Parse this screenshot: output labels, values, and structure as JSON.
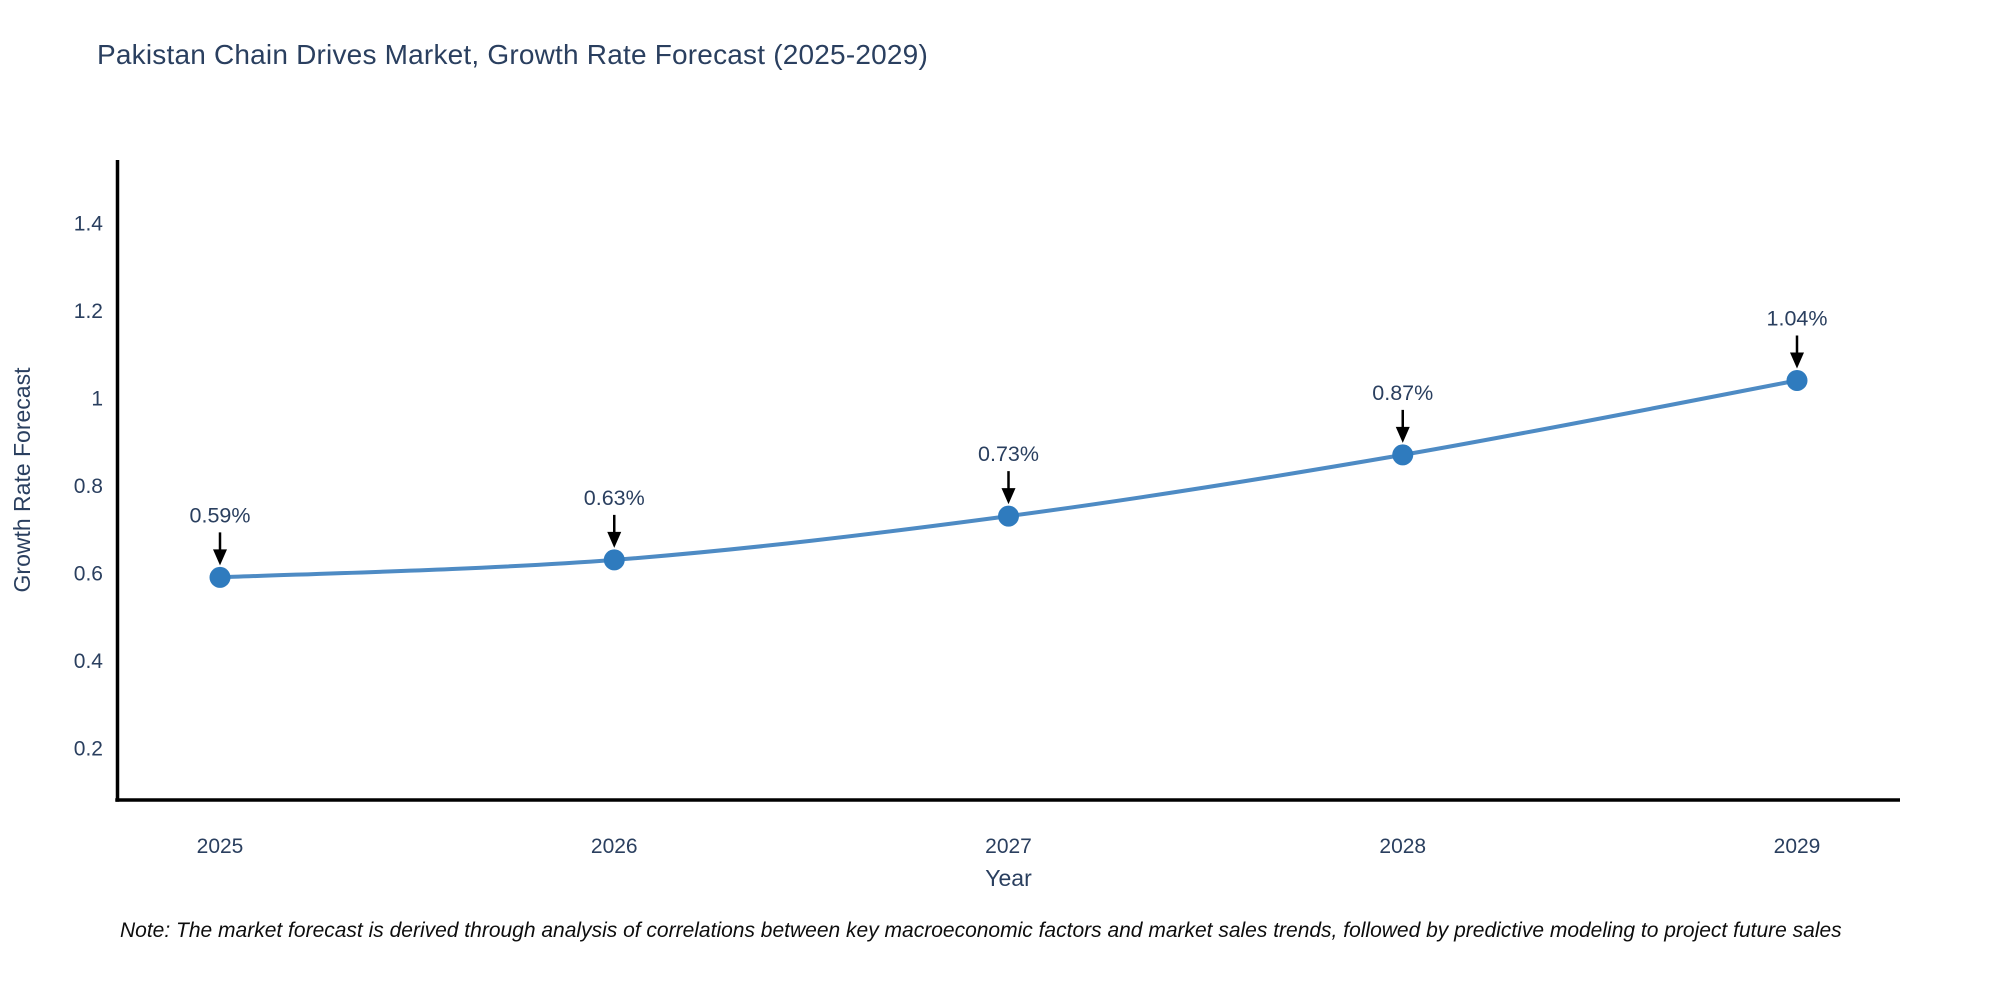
{
  "title": "Pakistan Chain Drives Market, Growth Rate Forecast (2025-2029)",
  "note": "Note: The market forecast is derived through analysis of correlations between key macroeconomic factors and market sales trends, followed by predictive modeling to project future sales",
  "chart_data": {
    "type": "line",
    "title": "Pakistan Chain Drives Market, Growth Rate Forecast (2025-2029)",
    "xlabel": "Year",
    "ylabel": "Growth Rate Forecast",
    "x": [
      2025,
      2026,
      2027,
      2028,
      2029
    ],
    "x_tick_labels": [
      "2025",
      "2026",
      "2027",
      "2028",
      "2029"
    ],
    "values": [
      0.59,
      0.63,
      0.73,
      0.87,
      1.04
    ],
    "point_labels": [
      "0.59%",
      "0.63%",
      "0.73%",
      "0.87%",
      "1.04%"
    ],
    "y_tick_labels": [
      "0.2",
      "0.4",
      "0.6",
      "0.8",
      "1",
      "1.2",
      "1.4"
    ],
    "ylim": [
      0.08,
      1.55
    ],
    "grid": false,
    "legend": "none",
    "line_shape": "spline",
    "marker": "circle",
    "annotations_have_arrows": true,
    "colors": {
      "line": "#4e8bc4",
      "marker": "#2f7bbe",
      "axis": "#000000",
      "text": "#2a3f5f",
      "arrow": "#000000",
      "note_text": "#0d0d0d",
      "background": "#ffffff"
    }
  }
}
